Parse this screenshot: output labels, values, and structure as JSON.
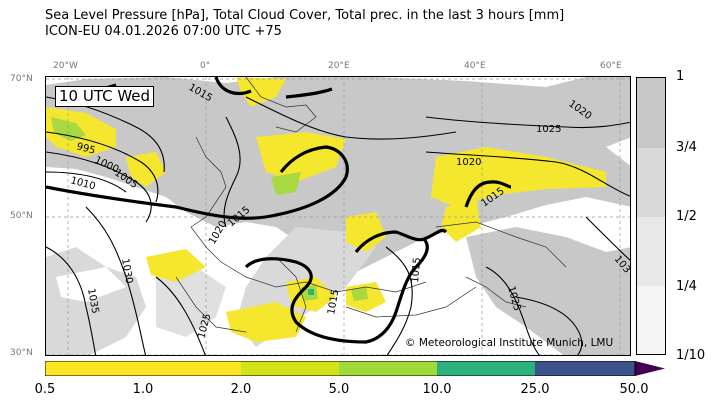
{
  "title": {
    "line1": "Sea Level Pressure [hPa], Total Cloud Cover, Total prec. in the last 3 hours [mm]",
    "line2": "ICON-EU 04.01.2026 07:00 UTC +75"
  },
  "map": {
    "time_label": "10 UTC Wed",
    "copyright": "© Meteorological Institute Munich, LMU",
    "lon_labels": [
      "20°W",
      "0°",
      "20°E",
      "40°E",
      "60°E"
    ],
    "lat_labels": [
      "70°N",
      "50°N",
      "30°N"
    ],
    "isobar_labels": [
      "1015",
      "1020",
      "1025",
      "995",
      "1000",
      "1005",
      "1010",
      "1015",
      "1020",
      "1015",
      "1030",
      "1035",
      "1025",
      "1015",
      "1015",
      "1025",
      "1020",
      "103"
    ],
    "colors": {
      "cloud_full": "#c8c8c8",
      "cloud_mid": "#d9d9d9",
      "precip_yellow": "#f5e62e",
      "precip_green": "#a8d940",
      "precip_teal": "#2fb37d",
      "precip_navy": "#3d5a8a",
      "precip_purple": "#4b1a5e"
    }
  },
  "cloud_colorbar": {
    "labels": [
      "1",
      "3/4",
      "1/2",
      "1/4",
      "1/10"
    ],
    "colors": [
      "#c8c8c8",
      "#d9d9d9",
      "#e8e8e8",
      "#f5f5f5"
    ]
  },
  "precip_colorbar": {
    "labels": [
      "0.5",
      "1.0",
      "2.0",
      "5.0",
      "10.0",
      "25.0",
      "50.0"
    ],
    "colors": [
      "#fde725",
      "#fde725",
      "#d2e21b",
      "#a0da39",
      "#2db27d",
      "#3b528b",
      "#440154"
    ]
  }
}
